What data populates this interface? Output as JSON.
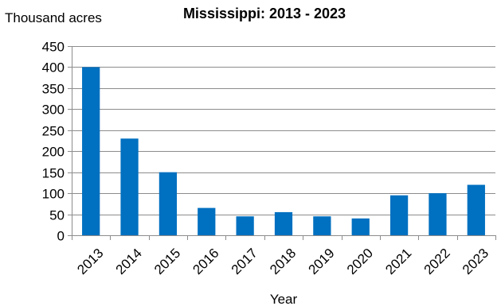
{
  "chart_data": {
    "type": "bar",
    "title": "Mississippi: 2013 - 2023",
    "ylabel": "Thousand acres",
    "xlabel": "Year",
    "categories": [
      "2013",
      "2014",
      "2015",
      "2016",
      "2017",
      "2018",
      "2019",
      "2020",
      "2021",
      "2022",
      "2023"
    ],
    "values": [
      400,
      230,
      150,
      65,
      45,
      55,
      45,
      40,
      95,
      100,
      120
    ],
    "ylim": [
      0,
      450
    ],
    "yticks": [
      0,
      50,
      100,
      150,
      200,
      250,
      300,
      350,
      400,
      450
    ],
    "grid": true,
    "legend": "none",
    "bar_color": "#0070c0"
  }
}
